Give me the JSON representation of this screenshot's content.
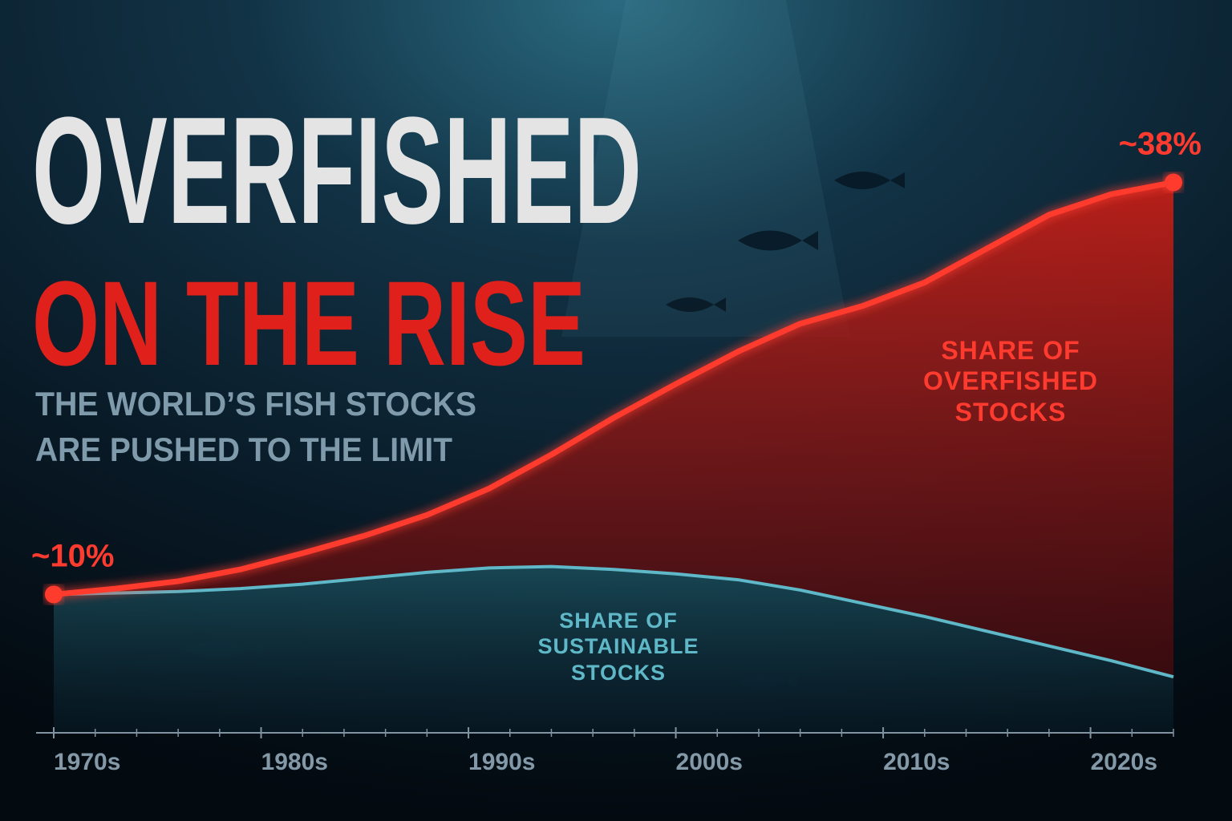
{
  "chart_data": {
    "type": "area",
    "title": [
      "OVERFISHED",
      "ON THE RISE"
    ],
    "subtitle": [
      "THE WORLD’S FISH STOCKS",
      "ARE PUSHED TO THE LIMIT"
    ],
    "x": [
      1970,
      1973,
      1976,
      1979,
      1982,
      1985,
      1988,
      1991,
      1994,
      1997,
      2000,
      2003,
      2006,
      2009,
      2012,
      2015,
      2018,
      2021,
      2024
    ],
    "series": [
      {
        "name": "SHARE OF OVERFISHED STOCKS",
        "color": "#ff3b2f",
        "values": [
          10,
          10.4,
          10.9,
          11.7,
          12.8,
          14,
          15.4,
          17.2,
          19.5,
          22,
          24.3,
          26.5,
          28.4,
          29.6,
          31.2,
          33.5,
          35.8,
          37.2,
          38
        ],
        "value_labels": [
          "~10%",
          null,
          null,
          null,
          null,
          null,
          null,
          null,
          null,
          null,
          null,
          null,
          null,
          null,
          null,
          null,
          null,
          null,
          "~38%"
        ]
      },
      {
        "name": "SHARE OF SUSTAINABLE STOCKS",
        "color": "#5fb8c8",
        "values": [
          10,
          10.1,
          10.2,
          10.4,
          10.7,
          11.1,
          11.5,
          11.8,
          11.9,
          11.7,
          11.4,
          11,
          10.3,
          9.4,
          8.5,
          7.5,
          6.5,
          5.5,
          4.4
        ]
      }
    ],
    "xlim": [
      1970,
      2024
    ],
    "ylim": [
      0,
      45
    ],
    "xticks": [
      {
        "value": 1970,
        "label": "1970s"
      },
      {
        "value": 1980,
        "label": "1980s"
      },
      {
        "value": 1990,
        "label": "1990s"
      },
      {
        "value": 2000,
        "label": "2000s"
      },
      {
        "value": 2010,
        "label": "2010s"
      },
      {
        "value": 2020,
        "label": "2020s"
      }
    ],
    "minor_xticks": [
      1972,
      1974,
      1976,
      1978,
      1982,
      1984,
      1986,
      1988,
      1992,
      1994,
      1996,
      1998,
      2002,
      2004,
      2006,
      2008,
      2012,
      2014,
      2016,
      2018,
      2022,
      2024
    ]
  }
}
